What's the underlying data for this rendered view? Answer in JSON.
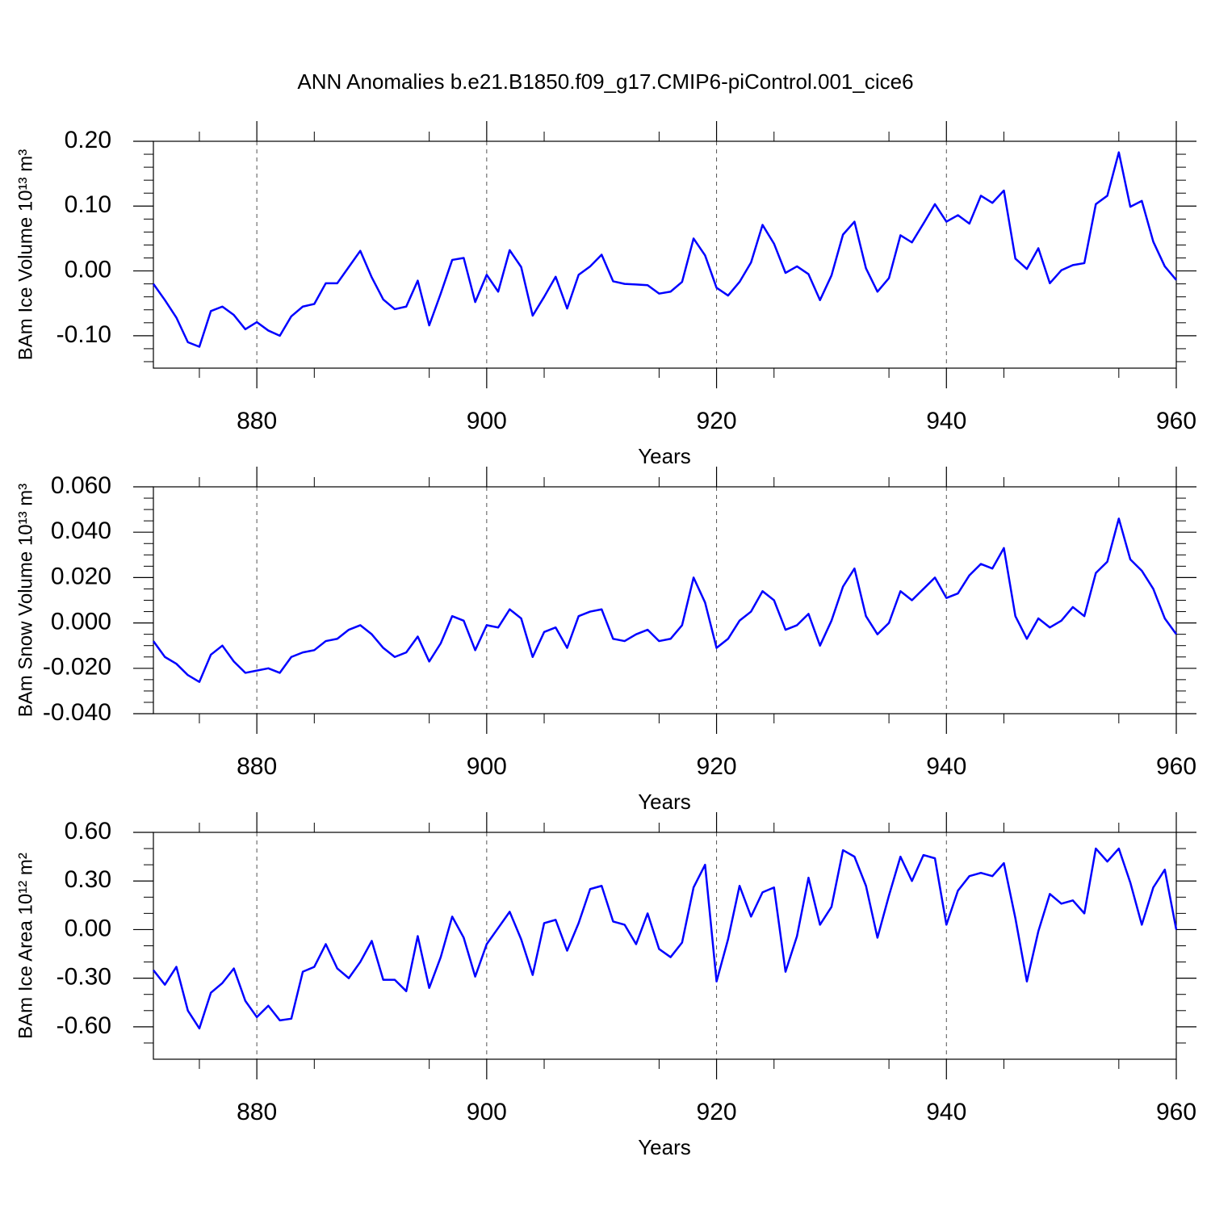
{
  "title": "ANN Anomalies b.e21.B1850.f09_g17.CMIP6-piControl.001_cice6",
  "chart_data": [
    {
      "type": "line",
      "ylabel": "BAm Ice Volume 10¹³ m³",
      "xlabel": "Years",
      "color": "#0000ff",
      "xgrid": "dashed",
      "xlim": [
        871,
        960
      ],
      "xticks": [
        880,
        900,
        920,
        940,
        960
      ],
      "xminorticks": [
        875,
        885,
        895,
        905,
        915,
        925,
        935,
        945,
        955
      ],
      "ylim": [
        -0.15,
        0.2
      ],
      "yticks": [
        {
          "value": -0.1,
          "label": "-0.10"
        },
        {
          "value": 0,
          "label": "0.00"
        },
        {
          "value": 0.1,
          "label": "0.10"
        },
        {
          "value": 0.2,
          "label": "0.20"
        }
      ],
      "yminorticks": [
        -0.14,
        -0.12,
        -0.08,
        -0.06,
        -0.04,
        -0.02,
        0.02,
        0.04,
        0.06,
        0.08,
        0.12,
        0.14,
        0.16,
        0.18
      ],
      "x": [
        871,
        872,
        873,
        874,
        875,
        876,
        877,
        878,
        879,
        880,
        881,
        882,
        883,
        884,
        885,
        886,
        887,
        888,
        889,
        890,
        891,
        892,
        893,
        894,
        895,
        896,
        897,
        898,
        899,
        900,
        901,
        902,
        903,
        904,
        905,
        906,
        907,
        908,
        909,
        910,
        911,
        912,
        913,
        914,
        915,
        916,
        917,
        918,
        919,
        920,
        921,
        922,
        923,
        924,
        925,
        926,
        927,
        928,
        929,
        930,
        931,
        932,
        933,
        934,
        935,
        936,
        937,
        938,
        939,
        940,
        941,
        942,
        943,
        944,
        945,
        946,
        947,
        948,
        949,
        950,
        951,
        952,
        953,
        954,
        955,
        956,
        957,
        958,
        959,
        960
      ],
      "values": [
        -0.02,
        -0.045,
        -0.072,
        -0.11,
        -0.117,
        -0.062,
        -0.055,
        -0.068,
        -0.09,
        -0.079,
        -0.092,
        -0.1,
        -0.07,
        -0.055,
        -0.051,
        -0.019,
        -0.019,
        0.006,
        0.031,
        -0.01,
        -0.044,
        -0.059,
        -0.055,
        -0.015,
        -0.084,
        -0.035,
        0.017,
        0.02,
        -0.048,
        -0.006,
        -0.032,
        0.032,
        0.006,
        -0.069,
        -0.04,
        -0.009,
        -0.058,
        -0.006,
        0.007,
        0.025,
        -0.016,
        -0.02,
        -0.021,
        -0.022,
        -0.035,
        -0.032,
        -0.017,
        0.05,
        0.024,
        -0.026,
        -0.038,
        -0.017,
        0.013,
        0.071,
        0.042,
        -0.003,
        0.007,
        -0.005,
        -0.045,
        -0.007,
        0.056,
        0.076,
        0.004,
        -0.032,
        -0.011,
        0.055,
        0.044,
        0.073,
        0.103,
        0.076,
        0.086,
        0.073,
        0.116,
        0.105,
        0.124,
        0.019,
        0.003,
        0.035,
        -0.019,
        0.001,
        0.009,
        0.012,
        0.103,
        0.116,
        0.183,
        0.099,
        0.108,
        0.045,
        0.007,
        -0.014
      ]
    },
    {
      "type": "line",
      "ylabel": "BAm Snow Volume 10¹³ m³",
      "xlabel": "Years",
      "color": "#0000ff",
      "xgrid": "dashed",
      "xlim": [
        871,
        960
      ],
      "xticks": [
        880,
        900,
        920,
        940,
        960
      ],
      "xminorticks": [
        875,
        885,
        895,
        905,
        915,
        925,
        935,
        945,
        955
      ],
      "ylim": [
        -0.04,
        0.06
      ],
      "yticks": [
        {
          "value": -0.04,
          "label": "-0.040"
        },
        {
          "value": -0.02,
          "label": "-0.020"
        },
        {
          "value": 0,
          "label": "0.000"
        },
        {
          "value": 0.02,
          "label": "0.020"
        },
        {
          "value": 0.04,
          "label": "0.040"
        },
        {
          "value": 0.06,
          "label": "0.060"
        }
      ],
      "yminorticks": [
        -0.035,
        -0.03,
        -0.025,
        -0.015,
        -0.01,
        -0.005,
        0.005,
        0.01,
        0.015,
        0.025,
        0.03,
        0.035,
        0.045,
        0.05,
        0.055
      ],
      "x": [
        871,
        872,
        873,
        874,
        875,
        876,
        877,
        878,
        879,
        880,
        881,
        882,
        883,
        884,
        885,
        886,
        887,
        888,
        889,
        890,
        891,
        892,
        893,
        894,
        895,
        896,
        897,
        898,
        899,
        900,
        901,
        902,
        903,
        904,
        905,
        906,
        907,
        908,
        909,
        910,
        911,
        912,
        913,
        914,
        915,
        916,
        917,
        918,
        919,
        920,
        921,
        922,
        923,
        924,
        925,
        926,
        927,
        928,
        929,
        930,
        931,
        932,
        933,
        934,
        935,
        936,
        937,
        938,
        939,
        940,
        941,
        942,
        943,
        944,
        945,
        946,
        947,
        948,
        949,
        950,
        951,
        952,
        953,
        954,
        955,
        956,
        957,
        958,
        959,
        960
      ],
      "values": [
        -0.008,
        -0.015,
        -0.018,
        -0.023,
        -0.026,
        -0.014,
        -0.01,
        -0.017,
        -0.022,
        -0.021,
        -0.02,
        -0.022,
        -0.015,
        -0.013,
        -0.012,
        -0.008,
        -0.007,
        -0.003,
        -0.001,
        -0.005,
        -0.011,
        -0.015,
        -0.013,
        -0.006,
        -0.017,
        -0.009,
        0.003,
        0.001,
        -0.012,
        -0.001,
        -0.002,
        0.006,
        0.002,
        -0.015,
        -0.004,
        -0.002,
        -0.011,
        0.003,
        0.005,
        0.006,
        -0.007,
        -0.008,
        -0.005,
        -0.003,
        -0.008,
        -0.007,
        -0.001,
        0.02,
        0.009,
        -0.011,
        -0.007,
        0.001,
        0.005,
        0.014,
        0.01,
        -0.003,
        -0.001,
        0.004,
        -0.01,
        0.001,
        0.016,
        0.024,
        0.003,
        -0.005,
        0,
        0.014,
        0.01,
        0.015,
        0.02,
        0.011,
        0.013,
        0.021,
        0.026,
        0.024,
        0.033,
        0.003,
        -0.007,
        0.002,
        -0.002,
        0.001,
        0.007,
        0.003,
        0.022,
        0.027,
        0.046,
        0.028,
        0.023,
        0.015,
        0.002,
        -0.005
      ]
    },
    {
      "type": "line",
      "ylabel": "BAm Ice Area 10¹² m²",
      "xlabel": "Years",
      "color": "#0000ff",
      "xgrid": "dashed",
      "xlim": [
        871,
        960
      ],
      "xticks": [
        880,
        900,
        920,
        940,
        960
      ],
      "xminorticks": [
        875,
        885,
        895,
        905,
        915,
        925,
        935,
        945,
        955
      ],
      "ylim": [
        -0.8,
        0.6
      ],
      "yticks": [
        {
          "value": -0.6,
          "label": "-0.60"
        },
        {
          "value": -0.3,
          "label": "-0.30"
        },
        {
          "value": 0,
          "label": "0.00"
        },
        {
          "value": 0.3,
          "label": "0.30"
        },
        {
          "value": 0.6,
          "label": "0.60"
        }
      ],
      "yminorticks": [
        -0.7,
        -0.5,
        -0.4,
        -0.2,
        -0.1,
        0.1,
        0.2,
        0.4,
        0.5
      ],
      "x": [
        871,
        872,
        873,
        874,
        875,
        876,
        877,
        878,
        879,
        880,
        881,
        882,
        883,
        884,
        885,
        886,
        887,
        888,
        889,
        890,
        891,
        892,
        893,
        894,
        895,
        896,
        897,
        898,
        899,
        900,
        901,
        902,
        903,
        904,
        905,
        906,
        907,
        908,
        909,
        910,
        911,
        912,
        913,
        914,
        915,
        916,
        917,
        918,
        919,
        920,
        921,
        922,
        923,
        924,
        925,
        926,
        927,
        928,
        929,
        930,
        931,
        932,
        933,
        934,
        935,
        936,
        937,
        938,
        939,
        940,
        941,
        942,
        943,
        944,
        945,
        946,
        947,
        948,
        949,
        950,
        951,
        952,
        953,
        954,
        955,
        956,
        957,
        958,
        959,
        960
      ],
      "values": [
        -0.25,
        -0.34,
        -0.23,
        -0.5,
        -0.61,
        -0.39,
        -0.33,
        -0.24,
        -0.44,
        -0.54,
        -0.47,
        -0.56,
        -0.55,
        -0.26,
        -0.23,
        -0.09,
        -0.24,
        -0.3,
        -0.2,
        -0.07,
        -0.31,
        -0.31,
        -0.38,
        -0.04,
        -0.36,
        -0.17,
        0.08,
        -0.05,
        -0.29,
        -0.09,
        0.01,
        0.11,
        -0.06,
        -0.28,
        0.04,
        0.06,
        -0.13,
        0.04,
        0.25,
        0.27,
        0.05,
        0.03,
        -0.09,
        0.1,
        -0.12,
        -0.17,
        -0.08,
        0.26,
        0.4,
        -0.32,
        -0.06,
        0.27,
        0.08,
        0.23,
        0.26,
        -0.26,
        -0.04,
        0.32,
        0.03,
        0.14,
        0.49,
        0.45,
        0.27,
        -0.05,
        0.21,
        0.45,
        0.3,
        0.46,
        0.44,
        0.03,
        0.24,
        0.33,
        0.35,
        0.33,
        0.41,
        0.07,
        -0.32,
        -0.01,
        0.22,
        0.16,
        0.18,
        0.1,
        0.5,
        0.42,
        0.5,
        0.29,
        0.03,
        0.26,
        0.37,
        0
      ]
    }
  ]
}
